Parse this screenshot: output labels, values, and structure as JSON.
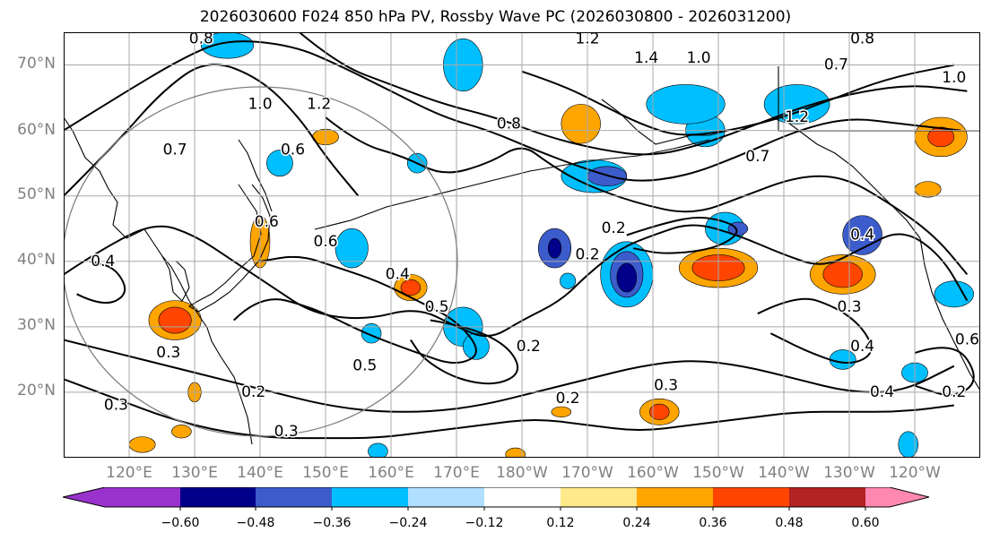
{
  "title": "2026030600 F024 850 hPa PV, Rossby Wave PC (2026030800 - 2026031200)",
  "latitude_labels": [
    "70°N",
    "60°N",
    "50°N",
    "40°N",
    "30°N",
    "20°N"
  ],
  "longitude_labels": [
    "120°E",
    "130°E",
    "140°E",
    "150°E",
    "160°E",
    "170°E",
    "180°W",
    "170°W",
    "160°W",
    "150°W",
    "140°W",
    "130°W",
    "120°W"
  ],
  "colorbar": {
    "tick_labels": [
      "−0.60",
      "−0.48",
      "−0.36",
      "−0.24",
      "−0.12",
      "0.12",
      "0.24",
      "0.36",
      "0.48",
      "0.60"
    ],
    "colors": [
      "#9932cc",
      "#00008b",
      "#3c5ccc",
      "#00bfff",
      "#b0e0ff",
      "#ffffff",
      "#ffe98a",
      "#ffa500",
      "#ff4500",
      "#b22222",
      "#ff88b0"
    ]
  },
  "contour_labels": [
    {
      "text": "0.8",
      "lon": 131,
      "lat": 74
    },
    {
      "text": "1.2",
      "lon": 190,
      "lat": 74
    },
    {
      "text": "0.8",
      "lon": 232,
      "lat": 74
    },
    {
      "text": "0.7",
      "lon": 228,
      "lat": 70
    },
    {
      "text": "1.4",
      "lon": 199,
      "lat": 71
    },
    {
      "text": "1.0",
      "lon": 207,
      "lat": 71
    },
    {
      "text": "1.0",
      "lon": 140,
      "lat": 64
    },
    {
      "text": "1.2",
      "lon": 149,
      "lat": 64
    },
    {
      "text": "1.2",
      "lon": 222,
      "lat": 62
    },
    {
      "text": "0.8",
      "lon": 178,
      "lat": 61
    },
    {
      "text": "0.6",
      "lon": 145,
      "lat": 57
    },
    {
      "text": "0.7",
      "lon": 127,
      "lat": 57
    },
    {
      "text": "0.7",
      "lon": 216,
      "lat": 56
    },
    {
      "text": "1.0",
      "lon": 246,
      "lat": 68
    },
    {
      "text": "0.6",
      "lon": 141,
      "lat": 46
    },
    {
      "text": "0.6",
      "lon": 150,
      "lat": 43
    },
    {
      "text": "0.4",
      "lon": 116,
      "lat": 40
    },
    {
      "text": "0.2",
      "lon": 194,
      "lat": 45
    },
    {
      "text": "0.2",
      "lon": 190,
      "lat": 41
    },
    {
      "text": "0.4",
      "lon": 232,
      "lat": 44
    },
    {
      "text": "0.4",
      "lon": 161,
      "lat": 38
    },
    {
      "text": "0.5",
      "lon": 167,
      "lat": 33
    },
    {
      "text": "0.5",
      "lon": 156,
      "lat": 24
    },
    {
      "text": "0.2",
      "lon": 181,
      "lat": 27
    },
    {
      "text": "0.3",
      "lon": 230,
      "lat": 33
    },
    {
      "text": "0.4",
      "lon": 232,
      "lat": 27
    },
    {
      "text": "0.3",
      "lon": 126,
      "lat": 26
    },
    {
      "text": "0.2",
      "lon": 139,
      "lat": 20
    },
    {
      "text": "0.3",
      "lon": 118,
      "lat": 18
    },
    {
      "text": "0.3",
      "lon": 144,
      "lat": 14
    },
    {
      "text": "0.2",
      "lon": 187,
      "lat": 19
    },
    {
      "text": "0.3",
      "lon": 202,
      "lat": 21
    },
    {
      "text": "0.4",
      "lon": 235,
      "lat": 20
    },
    {
      "text": "0.2",
      "lon": 246,
      "lat": 20
    },
    {
      "text": "0.6",
      "lon": 248,
      "lat": 28
    }
  ],
  "anomalies": [
    {
      "lon": 208,
      "lat": 60,
      "rx": 3,
      "ry": 2.5,
      "class": -0.3
    },
    {
      "lon": 205,
      "lat": 64,
      "rx": 6,
      "ry": 3,
      "class": -0.3
    },
    {
      "lon": 222,
      "lat": 64,
      "rx": 5,
      "ry": 3,
      "class": -0.3
    },
    {
      "lon": 189,
      "lat": 61,
      "rx": 3,
      "ry": 3,
      "class": 0.3
    },
    {
      "lon": 171,
      "lat": 70,
      "rx": 3,
      "ry": 4,
      "class": -0.3
    },
    {
      "lon": 135,
      "lat": 73,
      "rx": 4,
      "ry": 2,
      "class": -0.3
    },
    {
      "lon": 191,
      "lat": 53,
      "rx": 5,
      "ry": 2.5,
      "class": -0.3
    },
    {
      "lon": 193,
      "lat": 53,
      "rx": 3,
      "ry": 1.5,
      "class": -0.42
    },
    {
      "lon": 185,
      "lat": 42,
      "rx": 2.5,
      "ry": 3,
      "class": -0.42
    },
    {
      "lon": 185,
      "lat": 42,
      "rx": 1,
      "ry": 1.5,
      "class": -0.54
    },
    {
      "lon": 196,
      "lat": 38,
      "rx": 4,
      "ry": 5,
      "class": -0.3
    },
    {
      "lon": 196,
      "lat": 38,
      "rx": 2.5,
      "ry": 3.5,
      "class": -0.42
    },
    {
      "lon": 196,
      "lat": 37.5,
      "rx": 1.5,
      "ry": 2.2,
      "class": -0.54
    },
    {
      "lon": 211,
      "lat": 45,
      "rx": 3,
      "ry": 2.5,
      "class": -0.3
    },
    {
      "lon": 210,
      "lat": 39,
      "rx": 6,
      "ry": 3,
      "class": 0.3
    },
    {
      "lon": 210,
      "lat": 39,
      "rx": 4,
      "ry": 2,
      "class": 0.42
    },
    {
      "lon": 229,
      "lat": 38,
      "rx": 5,
      "ry": 3,
      "class": 0.3
    },
    {
      "lon": 229,
      "lat": 38,
      "rx": 3,
      "ry": 2,
      "class": 0.42
    },
    {
      "lon": 232,
      "lat": 44,
      "rx": 3,
      "ry": 3,
      "class": -0.42
    },
    {
      "lon": 244,
      "lat": 59,
      "rx": 4,
      "ry": 3,
      "class": 0.3
    },
    {
      "lon": 244,
      "lat": 59,
      "rx": 2,
      "ry": 1.5,
      "class": 0.42
    },
    {
      "lon": 242,
      "lat": 51,
      "rx": 2,
      "ry": 1.2,
      "class": 0.3
    },
    {
      "lon": 246,
      "lat": 35,
      "rx": 3,
      "ry": 2,
      "class": -0.3
    },
    {
      "lon": 240,
      "lat": 23,
      "rx": 2,
      "ry": 1.5,
      "class": -0.3
    },
    {
      "lon": 229,
      "lat": 25,
      "rx": 2,
      "ry": 1.5,
      "class": -0.3
    },
    {
      "lon": 163,
      "lat": 36,
      "rx": 2.5,
      "ry": 2,
      "class": 0.3
    },
    {
      "lon": 163,
      "lat": 36,
      "rx": 1.5,
      "ry": 1.2,
      "class": 0.42
    },
    {
      "lon": 154,
      "lat": 42,
      "rx": 2.5,
      "ry": 3,
      "class": -0.3
    },
    {
      "lon": 164,
      "lat": 55,
      "rx": 1.5,
      "ry": 1.5,
      "class": -0.3
    },
    {
      "lon": 143,
      "lat": 55,
      "rx": 2,
      "ry": 2,
      "class": -0.3
    },
    {
      "lon": 127,
      "lat": 31,
      "rx": 4,
      "ry": 3,
      "class": 0.3
    },
    {
      "lon": 127,
      "lat": 31,
      "rx": 2.5,
      "ry": 2,
      "class": 0.42
    },
    {
      "lon": 140,
      "lat": 43,
      "rx": 1.5,
      "ry": 4,
      "class": 0.24
    },
    {
      "lon": 171,
      "lat": 30,
      "rx": 3,
      "ry": 3,
      "class": -0.3
    },
    {
      "lon": 157,
      "lat": 29,
      "rx": 1.5,
      "ry": 1.5,
      "class": -0.3
    },
    {
      "lon": 173,
      "lat": 27,
      "rx": 2,
      "ry": 2,
      "class": -0.24
    },
    {
      "lon": 201,
      "lat": 17,
      "rx": 3,
      "ry": 2,
      "class": 0.3
    },
    {
      "lon": 201,
      "lat": 17,
      "rx": 1.5,
      "ry": 1.2,
      "class": 0.42
    },
    {
      "lon": 186,
      "lat": 17,
      "rx": 1.5,
      "ry": 0.8,
      "class": 0.24
    },
    {
      "lon": 239,
      "lat": 12,
      "rx": 1.5,
      "ry": 2,
      "class": -0.3
    },
    {
      "lon": 122,
      "lat": 12,
      "rx": 2,
      "ry": 1.2,
      "class": 0.3
    },
    {
      "lon": 128,
      "lat": 14,
      "rx": 1.5,
      "ry": 1,
      "class": 0.3
    },
    {
      "lon": 130,
      "lat": 20,
      "rx": 1,
      "ry": 1.5,
      "class": 0.24
    },
    {
      "lon": 158,
      "lat": 11,
      "rx": 1.5,
      "ry": 1.2,
      "class": -0.3
    },
    {
      "lon": 179,
      "lat": 10.5,
      "rx": 1.5,
      "ry": 1,
      "class": 0.3
    },
    {
      "lon": 187,
      "lat": 37,
      "rx": 1.2,
      "ry": 1.2,
      "class": -0.24
    },
    {
      "lon": 150,
      "lat": 59,
      "rx": 2,
      "ry": 1.2,
      "class": 0.3
    },
    {
      "lon": 213,
      "lat": 45,
      "rx": 1.5,
      "ry": 1,
      "class": -0.42
    }
  ],
  "contours": [
    {
      "points": [
        [
          110,
          50
        ],
        [
          118,
          58
        ],
        [
          125,
          66
        ],
        [
          132,
          71
        ],
        [
          140,
          68
        ],
        [
          146,
          62
        ],
        [
          150,
          56
        ],
        [
          155,
          50
        ]
      ]
    },
    {
      "points": [
        [
          110,
          60
        ],
        [
          118,
          65
        ],
        [
          128,
          71
        ],
        [
          135,
          74
        ],
        [
          145,
          73
        ],
        [
          152,
          70
        ],
        [
          160,
          66
        ],
        [
          168,
          62
        ],
        [
          175,
          60
        ],
        [
          182,
          57
        ],
        [
          190,
          54
        ],
        [
          197,
          52
        ],
        [
          205,
          53
        ],
        [
          213,
          56
        ],
        [
          222,
          60
        ],
        [
          230,
          62
        ],
        [
          238,
          61
        ],
        [
          247,
          60
        ]
      ]
    },
    {
      "points": [
        [
          146,
          75
        ],
        [
          152,
          70
        ],
        [
          160,
          67
        ],
        [
          168,
          64
        ],
        [
          176,
          62
        ],
        [
          184,
          59
        ],
        [
          192,
          57
        ],
        [
          200,
          56
        ],
        [
          208,
          58
        ],
        [
          216,
          61
        ],
        [
          224,
          64
        ],
        [
          232,
          66
        ],
        [
          240,
          67
        ],
        [
          248,
          66
        ]
      ]
    },
    {
      "points": [
        [
          180,
          69
        ],
        [
          186,
          67
        ],
        [
          192,
          64
        ],
        [
          198,
          61
        ],
        [
          204,
          59
        ],
        [
          212,
          60
        ],
        [
          220,
          62
        ],
        [
          228,
          65
        ],
        [
          236,
          68
        ],
        [
          246,
          70
        ]
      ]
    },
    {
      "points": [
        [
          150,
          62
        ],
        [
          155,
          58
        ],
        [
          162,
          56
        ],
        [
          168,
          53
        ],
        [
          175,
          55
        ],
        [
          180,
          58
        ],
        [
          184,
          55
        ],
        [
          189,
          52
        ],
        [
          197,
          49
        ],
        [
          206,
          47
        ],
        [
          214,
          50
        ],
        [
          222,
          53
        ],
        [
          229,
          53
        ],
        [
          236,
          49
        ],
        [
          243,
          44
        ],
        [
          248,
          38
        ]
      ]
    },
    {
      "points": [
        [
          110,
          38
        ],
        [
          116,
          42
        ],
        [
          124,
          46
        ],
        [
          130,
          44
        ],
        [
          136,
          40
        ],
        [
          142,
          36
        ],
        [
          148,
          32
        ],
        [
          156,
          31
        ],
        [
          164,
          33
        ],
        [
          170,
          30
        ],
        [
          175,
          28
        ],
        [
          180,
          31
        ],
        [
          186,
          34
        ],
        [
          190,
          38
        ],
        [
          195,
          42
        ],
        [
          200,
          44
        ],
        [
          206,
          46
        ],
        [
          213,
          44
        ],
        [
          220,
          41
        ],
        [
          226,
          39
        ],
        [
          232,
          42
        ],
        [
          238,
          45
        ],
        [
          244,
          41
        ],
        [
          248,
          34
        ]
      ]
    },
    {
      "points": [
        [
          110,
          28
        ],
        [
          118,
          26
        ],
        [
          126,
          24
        ],
        [
          134,
          22
        ],
        [
          142,
          20
        ],
        [
          150,
          18
        ],
        [
          158,
          17
        ],
        [
          166,
          17
        ],
        [
          174,
          18
        ],
        [
          182,
          20
        ],
        [
          190,
          22
        ],
        [
          198,
          24
        ],
        [
          206,
          25
        ],
        [
          214,
          24
        ],
        [
          222,
          22
        ],
        [
          230,
          20
        ],
        [
          238,
          20
        ],
        [
          246,
          24
        ]
      ]
    },
    {
      "points": [
        [
          110,
          22
        ],
        [
          118,
          19
        ],
        [
          126,
          16
        ],
        [
          134,
          14
        ],
        [
          142,
          13
        ],
        [
          150,
          13
        ],
        [
          158,
          13
        ],
        [
          166,
          14
        ],
        [
          174,
          15
        ],
        [
          182,
          16
        ],
        [
          190,
          15
        ],
        [
          198,
          14
        ],
        [
          206,
          15
        ],
        [
          214,
          16
        ],
        [
          222,
          17
        ],
        [
          230,
          17
        ],
        [
          238,
          17
        ],
        [
          246,
          18
        ]
      ]
    },
    {
      "points": [
        [
          136,
          31
        ],
        [
          140,
          35
        ],
        [
          148,
          33
        ],
        [
          156,
          29
        ],
        [
          164,
          26
        ],
        [
          170,
          24
        ],
        [
          174,
          26
        ],
        [
          170,
          31
        ],
        [
          164,
          34
        ],
        [
          158,
          37
        ],
        [
          152,
          39
        ],
        [
          146,
          41
        ],
        [
          140,
          40
        ]
      ]
    },
    {
      "points": [
        [
          166,
          31
        ],
        [
          172,
          30
        ],
        [
          178,
          27
        ],
        [
          180,
          23
        ],
        [
          176,
          21
        ],
        [
          170,
          22
        ],
        [
          165,
          25
        ],
        [
          163,
          28
        ]
      ]
    },
    {
      "points": [
        [
          216,
          32
        ],
        [
          222,
          35
        ],
        [
          228,
          33
        ],
        [
          232,
          30
        ],
        [
          234,
          26
        ],
        [
          230,
          24
        ],
        [
          224,
          26
        ],
        [
          218,
          29
        ]
      ]
    },
    {
      "points": [
        [
          240,
          26
        ],
        [
          246,
          28
        ],
        [
          250,
          22
        ],
        [
          246,
          19
        ],
        [
          240,
          21
        ]
      ]
    },
    {
      "points": [
        [
          112,
          35
        ],
        [
          116,
          33
        ],
        [
          120,
          35
        ],
        [
          118,
          39
        ],
        [
          114,
          40
        ]
      ]
    },
    {
      "points": [
        [
          196,
          44
        ],
        [
          202,
          46
        ],
        [
          208,
          47
        ],
        [
          214,
          45
        ],
        [
          210,
          42
        ],
        [
          202,
          41
        ],
        [
          197,
          42
        ]
      ]
    }
  ]
}
